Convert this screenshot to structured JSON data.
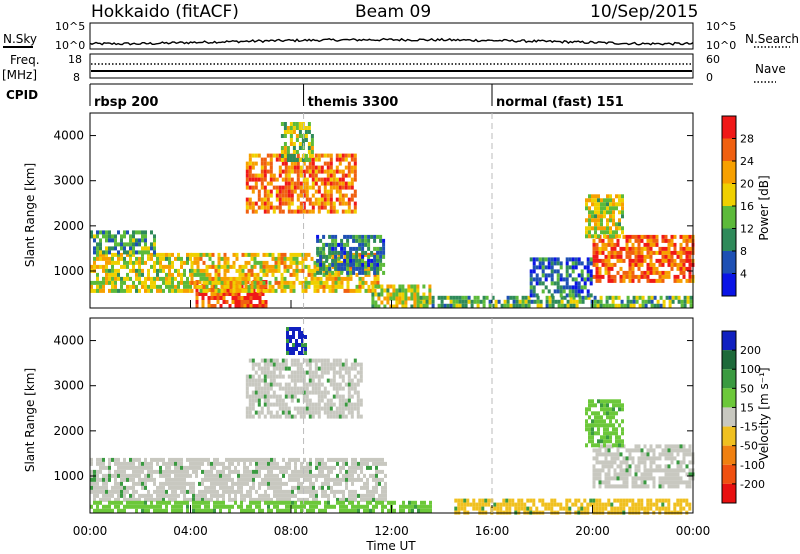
{
  "header": {
    "station": "Hokkaido (fitACF)",
    "beam": "Beam 09",
    "date": "10/Sep/2015"
  },
  "panels": {
    "nsky_label": "N.Sky",
    "nsky_ticks": [
      "10^5",
      "10^0"
    ],
    "nsearch_label": "N.Search",
    "freq_label_1": "Freq.",
    "freq_label_2": "[MHz]",
    "freq_ticks": [
      "18",
      "8"
    ],
    "nave_label": "Nave",
    "nave_ticks": [
      "60",
      "0"
    ],
    "cpid_label": "CPID",
    "cpid_segments": [
      {
        "label": "rbsp 200",
        "start": 0
      },
      {
        "label": "themis 3300",
        "start": 8.5
      },
      {
        "label": "normal (fast) 151",
        "start": 16
      }
    ]
  },
  "chart_data": [
    {
      "type": "heatmap",
      "name": "Power",
      "ylabel": "Slant Range [km]",
      "colorbar_label": "Power [dB]",
      "colorbar_ticks": [
        4,
        8,
        12,
        16,
        20,
        24,
        28
      ],
      "colorbar_colors": [
        "#0a14e6",
        "#1e50b4",
        "#2f8a5a",
        "#5cba3a",
        "#f0d000",
        "#f7a000",
        "#f06010",
        "#f01818"
      ],
      "ylim": [
        180,
        4500
      ],
      "yticks": [
        1000,
        2000,
        3000,
        4000
      ],
      "xlim": [
        0,
        24
      ],
      "regions": [
        {
          "t": [
            4.2,
            7.0
          ],
          "r": [
            250,
            800
          ],
          "v": 0.92
        },
        {
          "t": [
            0.0,
            4.0
          ],
          "r": [
            600,
            1400
          ],
          "v": 0.55
        },
        {
          "t": [
            4.0,
            11.5
          ],
          "r": [
            600,
            1400
          ],
          "v": 0.62
        },
        {
          "t": [
            0.0,
            2.6
          ],
          "r": [
            1400,
            1900
          ],
          "v": 0.3
        },
        {
          "t": [
            6.2,
            10.6
          ],
          "r": [
            2300,
            3600
          ],
          "v": 0.8
        },
        {
          "t": [
            7.6,
            8.8
          ],
          "r": [
            3500,
            4300
          ],
          "v": 0.45
        },
        {
          "t": [
            9.0,
            11.7
          ],
          "r": [
            1000,
            1800
          ],
          "v": 0.25
        },
        {
          "t": [
            11.2,
            13.5
          ],
          "r": [
            250,
            700
          ],
          "v": 0.55
        },
        {
          "t": [
            13.0,
            23.9
          ],
          "r": [
            250,
            450
          ],
          "v": 0.4
        },
        {
          "t": [
            20.0,
            24.0
          ],
          "r": [
            800,
            1800
          ],
          "v": 0.85
        },
        {
          "t": [
            19.7,
            21.2
          ],
          "r": [
            1800,
            2700
          ],
          "v": 0.55
        },
        {
          "t": [
            17.5,
            20.0
          ],
          "r": [
            500,
            1300
          ],
          "v": 0.2
        }
      ]
    },
    {
      "type": "heatmap",
      "name": "Velocity",
      "ylabel": "Slant Range [km]",
      "colorbar_label": "Velocity [m s⁻¹]",
      "colorbar_ticks": [
        200,
        100,
        50,
        15,
        -15,
        -50,
        -100,
        -200
      ],
      "colorbar_colors": [
        "#1020c0",
        "#1e6a3a",
        "#3a9a40",
        "#6cc83a",
        "#c8c8c0",
        "#f0c020",
        "#f08010",
        "#f05010",
        "#e81010"
      ],
      "ylim": [
        180,
        4500
      ],
      "yticks": [
        1000,
        2000,
        3000,
        4000
      ],
      "xlim": [
        0,
        24
      ],
      "xticks": [
        "00:00",
        "04:00",
        "08:00",
        "12:00",
        "16:00",
        "20:00",
        "00:00"
      ],
      "xlabel": "Time UT",
      "regions": [
        {
          "t": [
            0.0,
            11.8
          ],
          "r": [
            450,
            1400
          ],
          "v": "gray"
        },
        {
          "t": [
            6.2,
            10.8
          ],
          "r": [
            2300,
            3600
          ],
          "v": "gray"
        },
        {
          "t": [
            7.8,
            8.6
          ],
          "r": [
            3700,
            4300
          ],
          "v": "blue"
        },
        {
          "t": [
            0.0,
            13.5
          ],
          "r": [
            200,
            450
          ],
          "v": "green"
        },
        {
          "t": [
            14.5,
            23.9
          ],
          "r": [
            200,
            500
          ],
          "v": "orange"
        },
        {
          "t": [
            20.0,
            24.0
          ],
          "r": [
            800,
            1700
          ],
          "v": "gray"
        },
        {
          "t": [
            19.7,
            21.2
          ],
          "r": [
            1700,
            2700
          ],
          "v": "green"
        }
      ]
    }
  ]
}
